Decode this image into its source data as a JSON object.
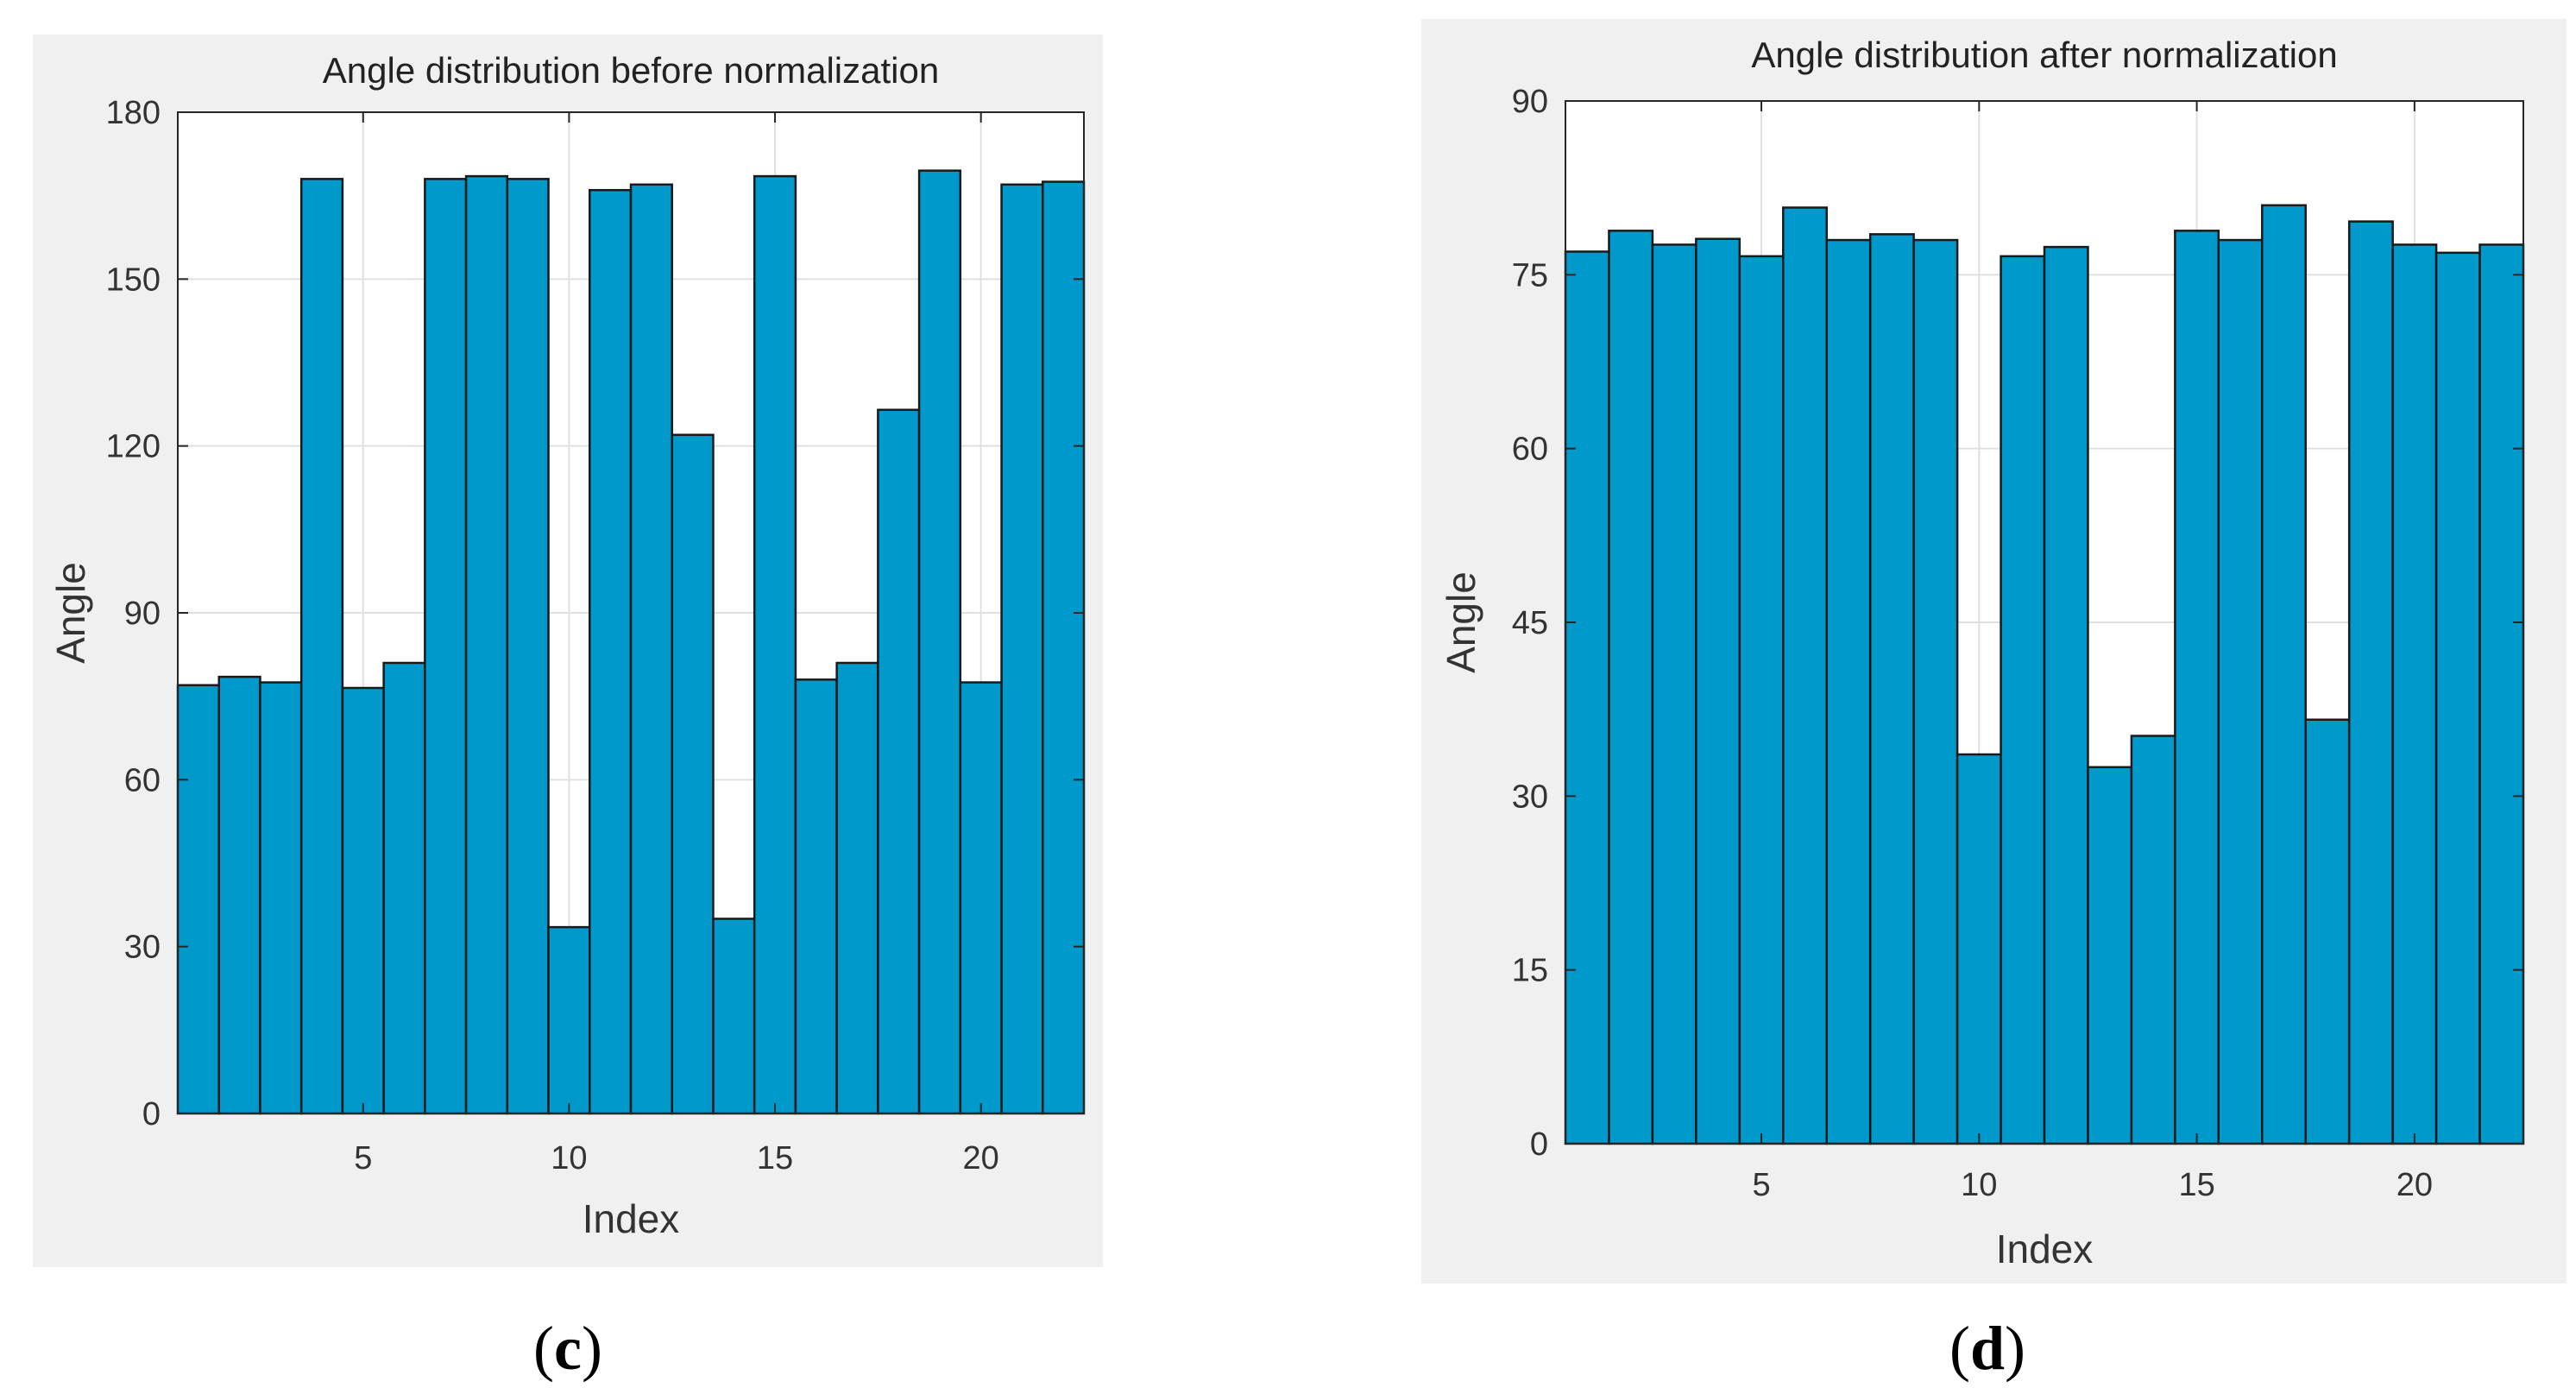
{
  "colors": {
    "bar_fill": "#0099cc",
    "bar_edge": "#1a1a1a",
    "panel_bg": "#f0f0f0",
    "plot_bg": "#ffffff",
    "grid": "#e0e0e0"
  },
  "captions": {
    "c": {
      "open": "(",
      "letter": "c",
      "close": ")"
    },
    "d": {
      "open": "(",
      "letter": "d",
      "close": ")"
    }
  },
  "chart_data": [
    {
      "type": "bar",
      "title": "Angle distribution before normalization",
      "xlabel": "Index",
      "ylabel": "Angle",
      "x": [
        1,
        2,
        3,
        4,
        5,
        6,
        7,
        8,
        9,
        10,
        11,
        12,
        13,
        14,
        15,
        16,
        17,
        18,
        19,
        20,
        21,
        22
      ],
      "values": [
        77,
        78.5,
        77.5,
        168,
        76.5,
        81,
        168,
        168.5,
        168,
        33.5,
        166,
        167,
        122,
        35,
        168.5,
        78,
        81,
        126.5,
        169.5,
        77.5,
        167,
        167.5
      ],
      "xlim": [
        0.5,
        22.5
      ],
      "ylim": [
        0,
        180
      ],
      "xticks": [
        5,
        10,
        15,
        20
      ],
      "yticks": [
        0,
        30,
        60,
        90,
        120,
        150,
        180
      ],
      "grid": true
    },
    {
      "type": "bar",
      "title": "Angle distribution after normalization",
      "xlabel": "Index",
      "ylabel": "Angle",
      "x": [
        1,
        2,
        3,
        4,
        5,
        6,
        7,
        8,
        9,
        10,
        11,
        12,
        13,
        14,
        15,
        16,
        17,
        18,
        19,
        20,
        21,
        22
      ],
      "values": [
        77,
        78.8,
        77.6,
        78.1,
        76.6,
        80.8,
        78,
        78.5,
        78,
        33.6,
        76.6,
        77.4,
        32.5,
        35.2,
        78.8,
        78,
        81,
        36.6,
        79.6,
        77.6,
        76.9,
        77.6
      ],
      "xlim": [
        0.5,
        22.5
      ],
      "ylim": [
        0,
        90
      ],
      "xticks": [
        5,
        10,
        15,
        20
      ],
      "yticks": [
        0,
        15,
        30,
        45,
        60,
        75,
        90
      ],
      "grid": true
    }
  ]
}
